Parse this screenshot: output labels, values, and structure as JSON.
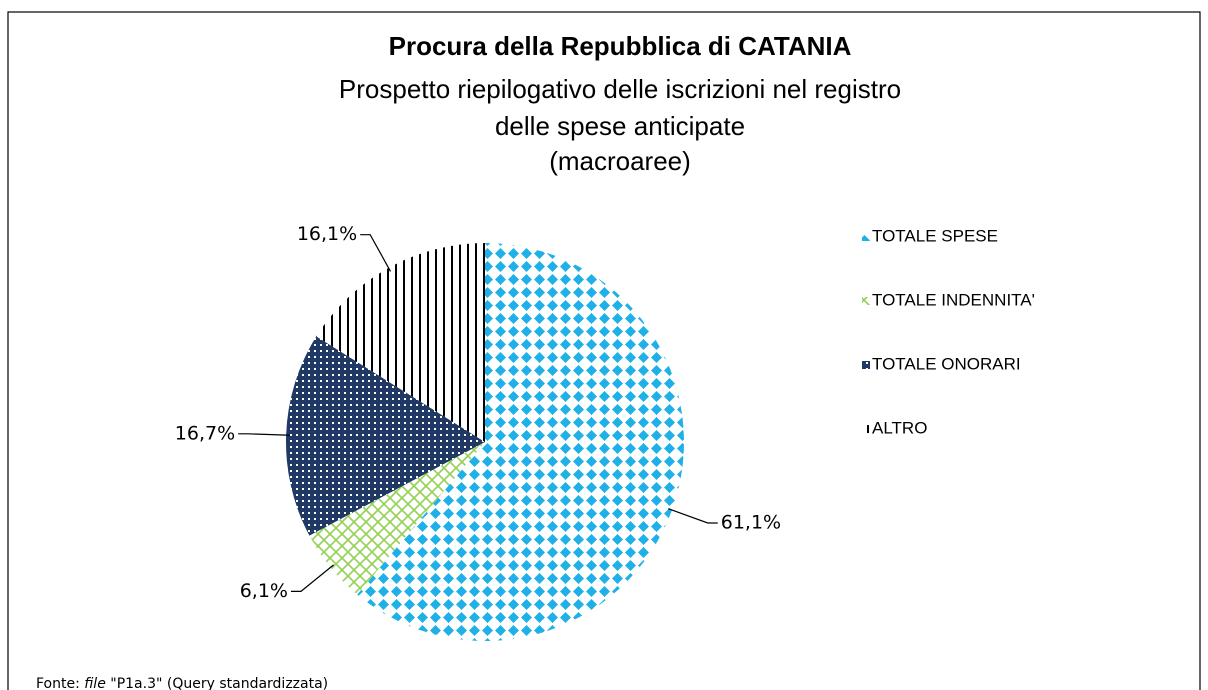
{
  "chart_data": {
    "type": "pie",
    "title": "Procura della Repubblica di CATANIA",
    "subtitle": [
      "Prospetto riepilogativo delle iscrizioni nel registro",
      "delle spese anticipate",
      "(macroaree)"
    ],
    "categories": [
      "TOTALE SPESE",
      "TOTALE INDENNITA'",
      "TOTALE ONORARI",
      "ALTRO"
    ],
    "values": [
      61.1,
      6.1,
      16.7,
      16.1
    ],
    "value_labels": [
      "61,1%",
      "6,1%",
      "16,7%",
      "16,1%"
    ],
    "colors": [
      "#1fb0e8",
      "#92d050",
      "#1f3864",
      "#000000"
    ],
    "legend": "right",
    "source": [
      "Fonte: ",
      "file",
      " \"P1a.3\" (Query standardizzata)"
    ]
  }
}
